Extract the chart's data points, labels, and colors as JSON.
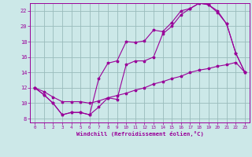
{
  "background_color": "#cce8e8",
  "line_color": "#990099",
  "grid_color": "#99bbbb",
  "xlabel": "Windchill (Refroidissement éolien,°C)",
  "tick_color": "#990099",
  "xlim": [
    -0.5,
    23.5
  ],
  "ylim": [
    7.5,
    23.0
  ],
  "yticks": [
    8,
    10,
    12,
    14,
    16,
    18,
    20,
    22
  ],
  "xticks": [
    0,
    1,
    2,
    3,
    4,
    5,
    6,
    7,
    8,
    9,
    10,
    11,
    12,
    13,
    14,
    15,
    16,
    17,
    18,
    19,
    20,
    21,
    22,
    23
  ],
  "line1_x": [
    0,
    1,
    2,
    3,
    4,
    5,
    6,
    7,
    8,
    9,
    10,
    11,
    12,
    13,
    14,
    15,
    16,
    17,
    18,
    19,
    20,
    21,
    22,
    23
  ],
  "line1_y": [
    12.0,
    11.1,
    10.0,
    8.5,
    8.8,
    8.8,
    8.5,
    13.2,
    15.2,
    15.5,
    18.0,
    17.9,
    18.1,
    19.5,
    19.3,
    20.5,
    22.0,
    22.3,
    23.0,
    22.8,
    22.0,
    20.3,
    16.5,
    14.0
  ],
  "line2_x": [
    0,
    1,
    2,
    3,
    4,
    5,
    6,
    7,
    8,
    9,
    10,
    11,
    12,
    13,
    14,
    15,
    16,
    17,
    18,
    19,
    20,
    21,
    22,
    23
  ],
  "line2_y": [
    12.0,
    11.1,
    10.0,
    8.5,
    8.8,
    8.8,
    8.5,
    9.5,
    10.7,
    10.5,
    15.0,
    15.5,
    15.5,
    16.0,
    19.0,
    20.0,
    21.5,
    22.3,
    23.0,
    22.8,
    21.8,
    20.3,
    16.5,
    14.0
  ],
  "line3_x": [
    0,
    1,
    2,
    3,
    4,
    5,
    6,
    7,
    8,
    9,
    10,
    11,
    12,
    13,
    14,
    15,
    16,
    17,
    18,
    19,
    20,
    21,
    22,
    23
  ],
  "line3_y": [
    12.0,
    11.5,
    10.8,
    10.2,
    10.2,
    10.2,
    10.0,
    10.3,
    10.7,
    11.0,
    11.3,
    11.7,
    12.0,
    12.5,
    12.8,
    13.2,
    13.5,
    14.0,
    14.3,
    14.5,
    14.8,
    15.0,
    15.3,
    14.0
  ]
}
